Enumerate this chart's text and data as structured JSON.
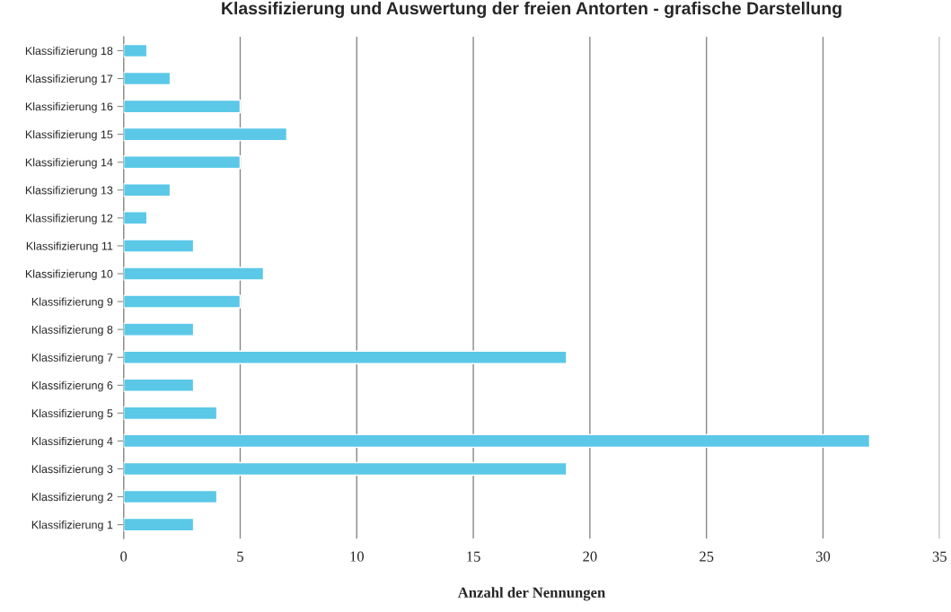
{
  "chart_data": {
    "type": "bar",
    "orientation": "horizontal",
    "title": "Klassifizierung und Auswertung der freien Antorten - grafische Darstellung",
    "xlabel": "Anzahl der Nennungen",
    "categories": [
      "Klassifizierung 18",
      "Klassifizierung 17",
      "Klassifizierung 16",
      "Klassifizierung 15",
      "Klassifizierung 14",
      "Klassifizierung 13",
      "Klassifizierung 12",
      "Klassifizierung 11",
      "Klassifizierung 10",
      "Klassifizierung 9",
      "Klassifizierung 8",
      "Klassifizierung 7",
      "Klassifizierung 6",
      "Klassifizierung 5",
      "Klassifizierung 4",
      "Klassifizierung 3",
      "Klassifizierung 2",
      "Klassifizierung 1"
    ],
    "values": [
      1,
      2,
      5,
      7,
      5,
      2,
      1,
      3,
      6,
      5,
      3,
      19,
      3,
      4,
      32,
      19,
      4,
      3
    ],
    "color": "#5bc8e8",
    "xlim": [
      0,
      35
    ],
    "xticks": [
      0,
      5,
      10,
      15,
      20,
      25,
      30,
      35
    ],
    "grid": "x"
  }
}
